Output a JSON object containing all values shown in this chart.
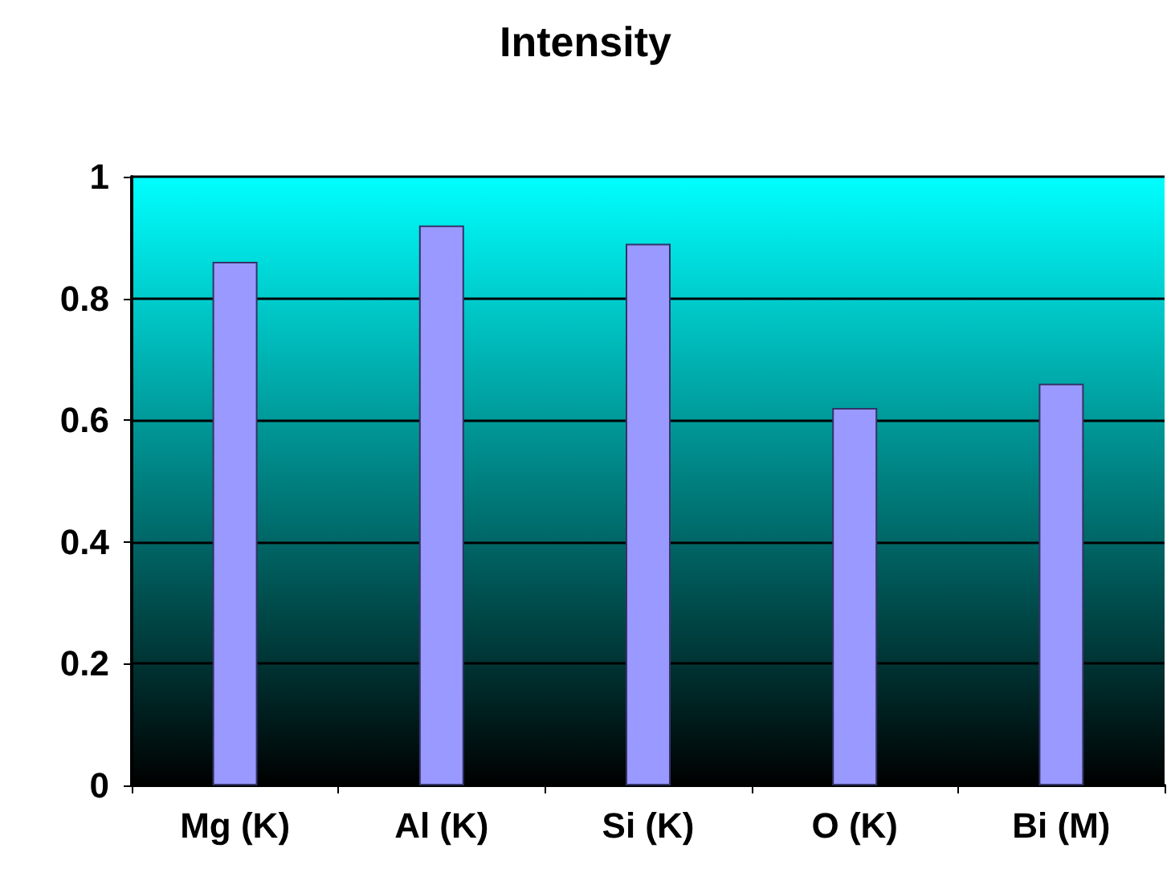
{
  "chart_data": {
    "type": "bar",
    "title": "Intensity",
    "categories": [
      "Mg (K)",
      "Al (K)",
      "Si (K)",
      "O (K)",
      "Bi (M)"
    ],
    "values": [
      0.86,
      0.92,
      0.89,
      0.62,
      0.66
    ],
    "color": "#9999ff",
    "ylim": [
      0,
      1
    ],
    "yticks": [
      0,
      0.2,
      0.4,
      0.6,
      0.8,
      1
    ],
    "grid": "y"
  }
}
